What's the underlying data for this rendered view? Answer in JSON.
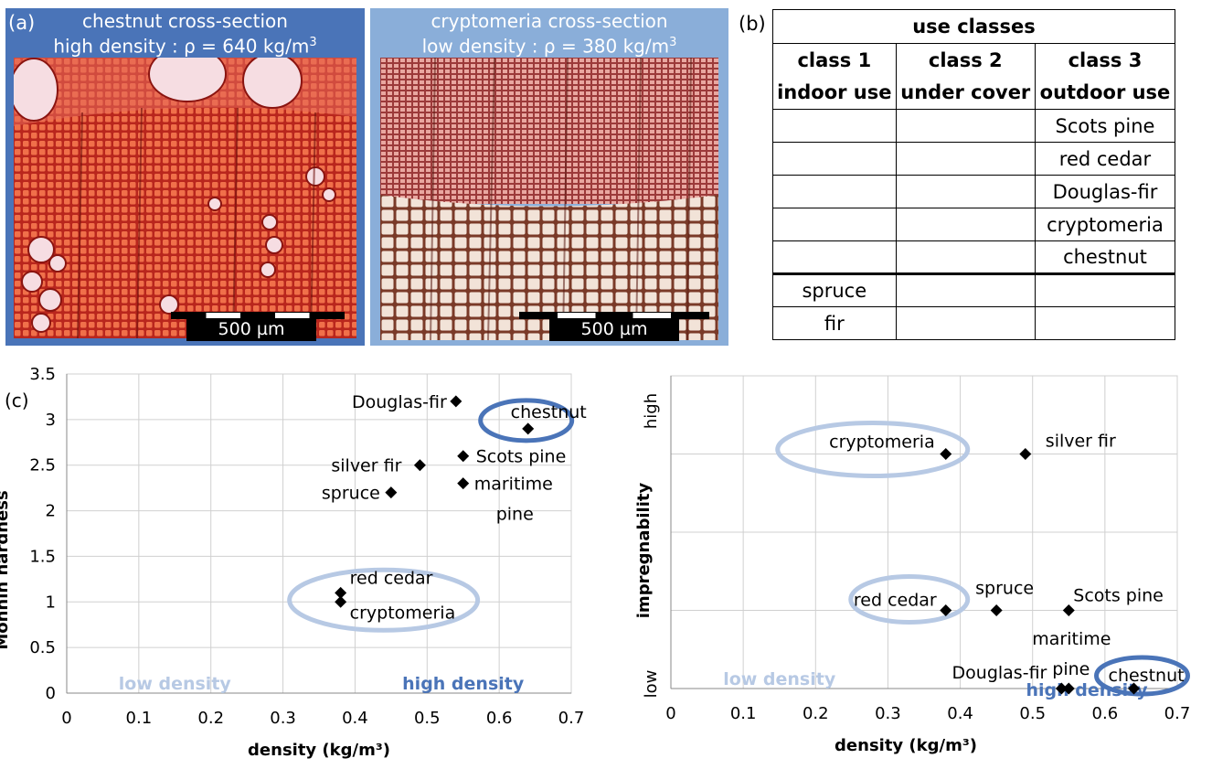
{
  "panel_a": {
    "tag": "(a)",
    "chestnut": {
      "caption_line1": "chestnut cross-section",
      "caption_line2": "high density : ρ = 640 kg/m",
      "caption_sup": "3",
      "scalebar": "500 µm"
    },
    "cryptomeria": {
      "caption_line1": "cryptomeria cross-section",
      "caption_line2": "low density : ρ = 380 kg/m",
      "caption_sup": "3",
      "scalebar": "500 µm"
    },
    "colors": {
      "chestnut_frame": "#4a74b8",
      "cryptomeria_frame": "#8aaed9"
    }
  },
  "panel_b": {
    "tag": "(b)",
    "title": "use classes",
    "columns": [
      {
        "line1": "class 1",
        "line2": "indoor use"
      },
      {
        "line1": "class 2",
        "line2": "under cover"
      },
      {
        "line1": "class 3",
        "line2": "outdoor use"
      }
    ],
    "rows": [
      [
        "",
        "",
        "Scots pine"
      ],
      [
        "",
        "",
        "red cedar"
      ],
      [
        "",
        "",
        "Douglas-fir"
      ],
      [
        "",
        "",
        "cryptomeria"
      ],
      [
        "",
        "",
        "chestnut"
      ],
      [
        "spruce",
        "",
        ""
      ],
      [
        "fir",
        "",
        ""
      ]
    ]
  },
  "chart_data": [
    {
      "type": "scatter",
      "tag": "(c)",
      "xlabel": "density (kg/m³)",
      "ylabel": "Monnin hardness",
      "xlim": [
        0,
        0.7
      ],
      "ylim": [
        0,
        3.5
      ],
      "xticks": [
        "0",
        "0.1",
        "0.2",
        "0.3",
        "0.4",
        "0.5",
        "0.6",
        "0.7"
      ],
      "yticks": [
        "0",
        "0.5",
        "1",
        "1.5",
        "2",
        "2.5",
        "3",
        "3.5"
      ],
      "grid": true,
      "points": [
        {
          "label": "Douglas-fir",
          "x": 0.54,
          "y": 3.2
        },
        {
          "label": "chestnut",
          "x": 0.64,
          "y": 2.9
        },
        {
          "label": "silver fir",
          "x": 0.49,
          "y": 2.5
        },
        {
          "label": "Scots pine",
          "x": 0.55,
          "y": 2.6
        },
        {
          "label": "maritime pine",
          "x": 0.55,
          "y": 2.3
        },
        {
          "label": "spruce",
          "x": 0.45,
          "y": 2.2
        },
        {
          "label": "red cedar",
          "x": 0.38,
          "y": 1.1
        },
        {
          "label": "cryptomeria",
          "x": 0.38,
          "y": 1.0
        }
      ],
      "annotations": {
        "low": "low density",
        "high": "high density"
      },
      "colors": {
        "low": "#b7c9e4",
        "high": "#4a74b8"
      }
    },
    {
      "type": "scatter",
      "xlabel": "density (kg/m³)",
      "ylabel": "impregnability",
      "xlim": [
        0,
        0.7
      ],
      "ylim": [
        0,
        4
      ],
      "xticks": [
        "0",
        "0.1",
        "0.2",
        "0.3",
        "0.4",
        "0.5",
        "0.6",
        "0.7"
      ],
      "y_category_labels": {
        "low": "low",
        "high": "high"
      },
      "grid": true,
      "points": [
        {
          "label": "cryptomeria",
          "x": 0.38,
          "y": 3
        },
        {
          "label": "silver fir",
          "x": 0.49,
          "y": 3
        },
        {
          "label": "red cedar",
          "x": 0.38,
          "y": 1
        },
        {
          "label": "spruce",
          "x": 0.45,
          "y": 1
        },
        {
          "label": "Scots pine",
          "x": 0.55,
          "y": 1
        },
        {
          "label": "maritime pine",
          "x": 0.55,
          "y": 0
        },
        {
          "label": "Douglas-fir",
          "x": 0.54,
          "y": 0
        },
        {
          "label": "chestnut",
          "x": 0.64,
          "y": 0
        }
      ],
      "annotations": {
        "low": "low density",
        "high": "high density"
      },
      "colors": {
        "low": "#b7c9e4",
        "high": "#4a74b8"
      }
    }
  ]
}
